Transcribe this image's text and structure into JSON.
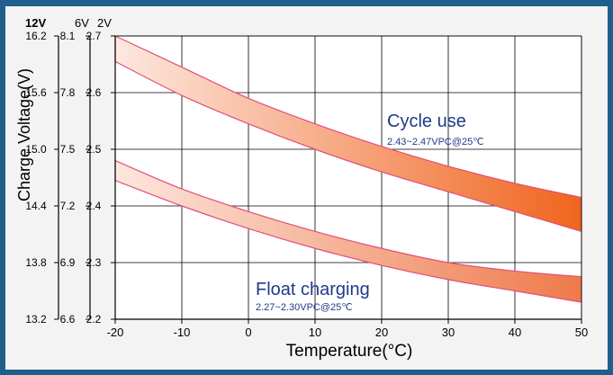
{
  "chart_data": {
    "type": "area",
    "title": "",
    "xlabel": "Temperature(°C)",
    "ylabel": "Charge Voltage(V)",
    "x_ticks": [
      -20,
      -10,
      0,
      10,
      20,
      30,
      40,
      50
    ],
    "xlim": [
      -20,
      50
    ],
    "ylim": [
      2.2,
      2.7
    ],
    "y_axes": [
      {
        "header": "12V",
        "ticks": [
          "16.2",
          "15.6",
          "15.0",
          "14.4",
          "13.8",
          "13.2"
        ]
      },
      {
        "header": "6V",
        "ticks": [
          "8.1",
          "7.8",
          "7.5",
          "7.2",
          "6.9",
          "6.6"
        ]
      },
      {
        "header": "2V",
        "ticks": [
          "2.7",
          "2.6",
          "2.5",
          "2.4",
          "2.3",
          "2.2"
        ]
      }
    ],
    "y_tick_values": [
      2.7,
      2.6,
      2.5,
      2.4,
      2.3,
      2.2
    ],
    "grid": true,
    "series": [
      {
        "name": "Cycle use",
        "note": "2.43~2.47VPC@25℃",
        "x": [
          -20,
          -10,
          0,
          10,
          20,
          30,
          40,
          50
        ],
        "upper": [
          2.7,
          2.645,
          2.59,
          2.545,
          2.505,
          2.47,
          2.44,
          2.415
        ],
        "lower": [
          2.655,
          2.595,
          2.545,
          2.5,
          2.46,
          2.425,
          2.39,
          2.355
        ],
        "color_start": "#fde8e0",
        "color_end": "#f0641e",
        "stroke": "#e0507a"
      },
      {
        "name": "Float charging",
        "note": "2.27~2.30VPC@25℃",
        "x": [
          -20,
          -10,
          0,
          10,
          20,
          30,
          40,
          50
        ],
        "upper": [
          2.48,
          2.43,
          2.39,
          2.355,
          2.325,
          2.3,
          2.285,
          2.275
        ],
        "lower": [
          2.445,
          2.4,
          2.36,
          2.325,
          2.295,
          2.27,
          2.25,
          2.23
        ],
        "color_start": "#fde6de",
        "color_end": "#ee7a4a",
        "stroke": "#e0507a"
      }
    ],
    "label_color": "#1f3a8a",
    "frame_color": "#1f5f8b"
  }
}
